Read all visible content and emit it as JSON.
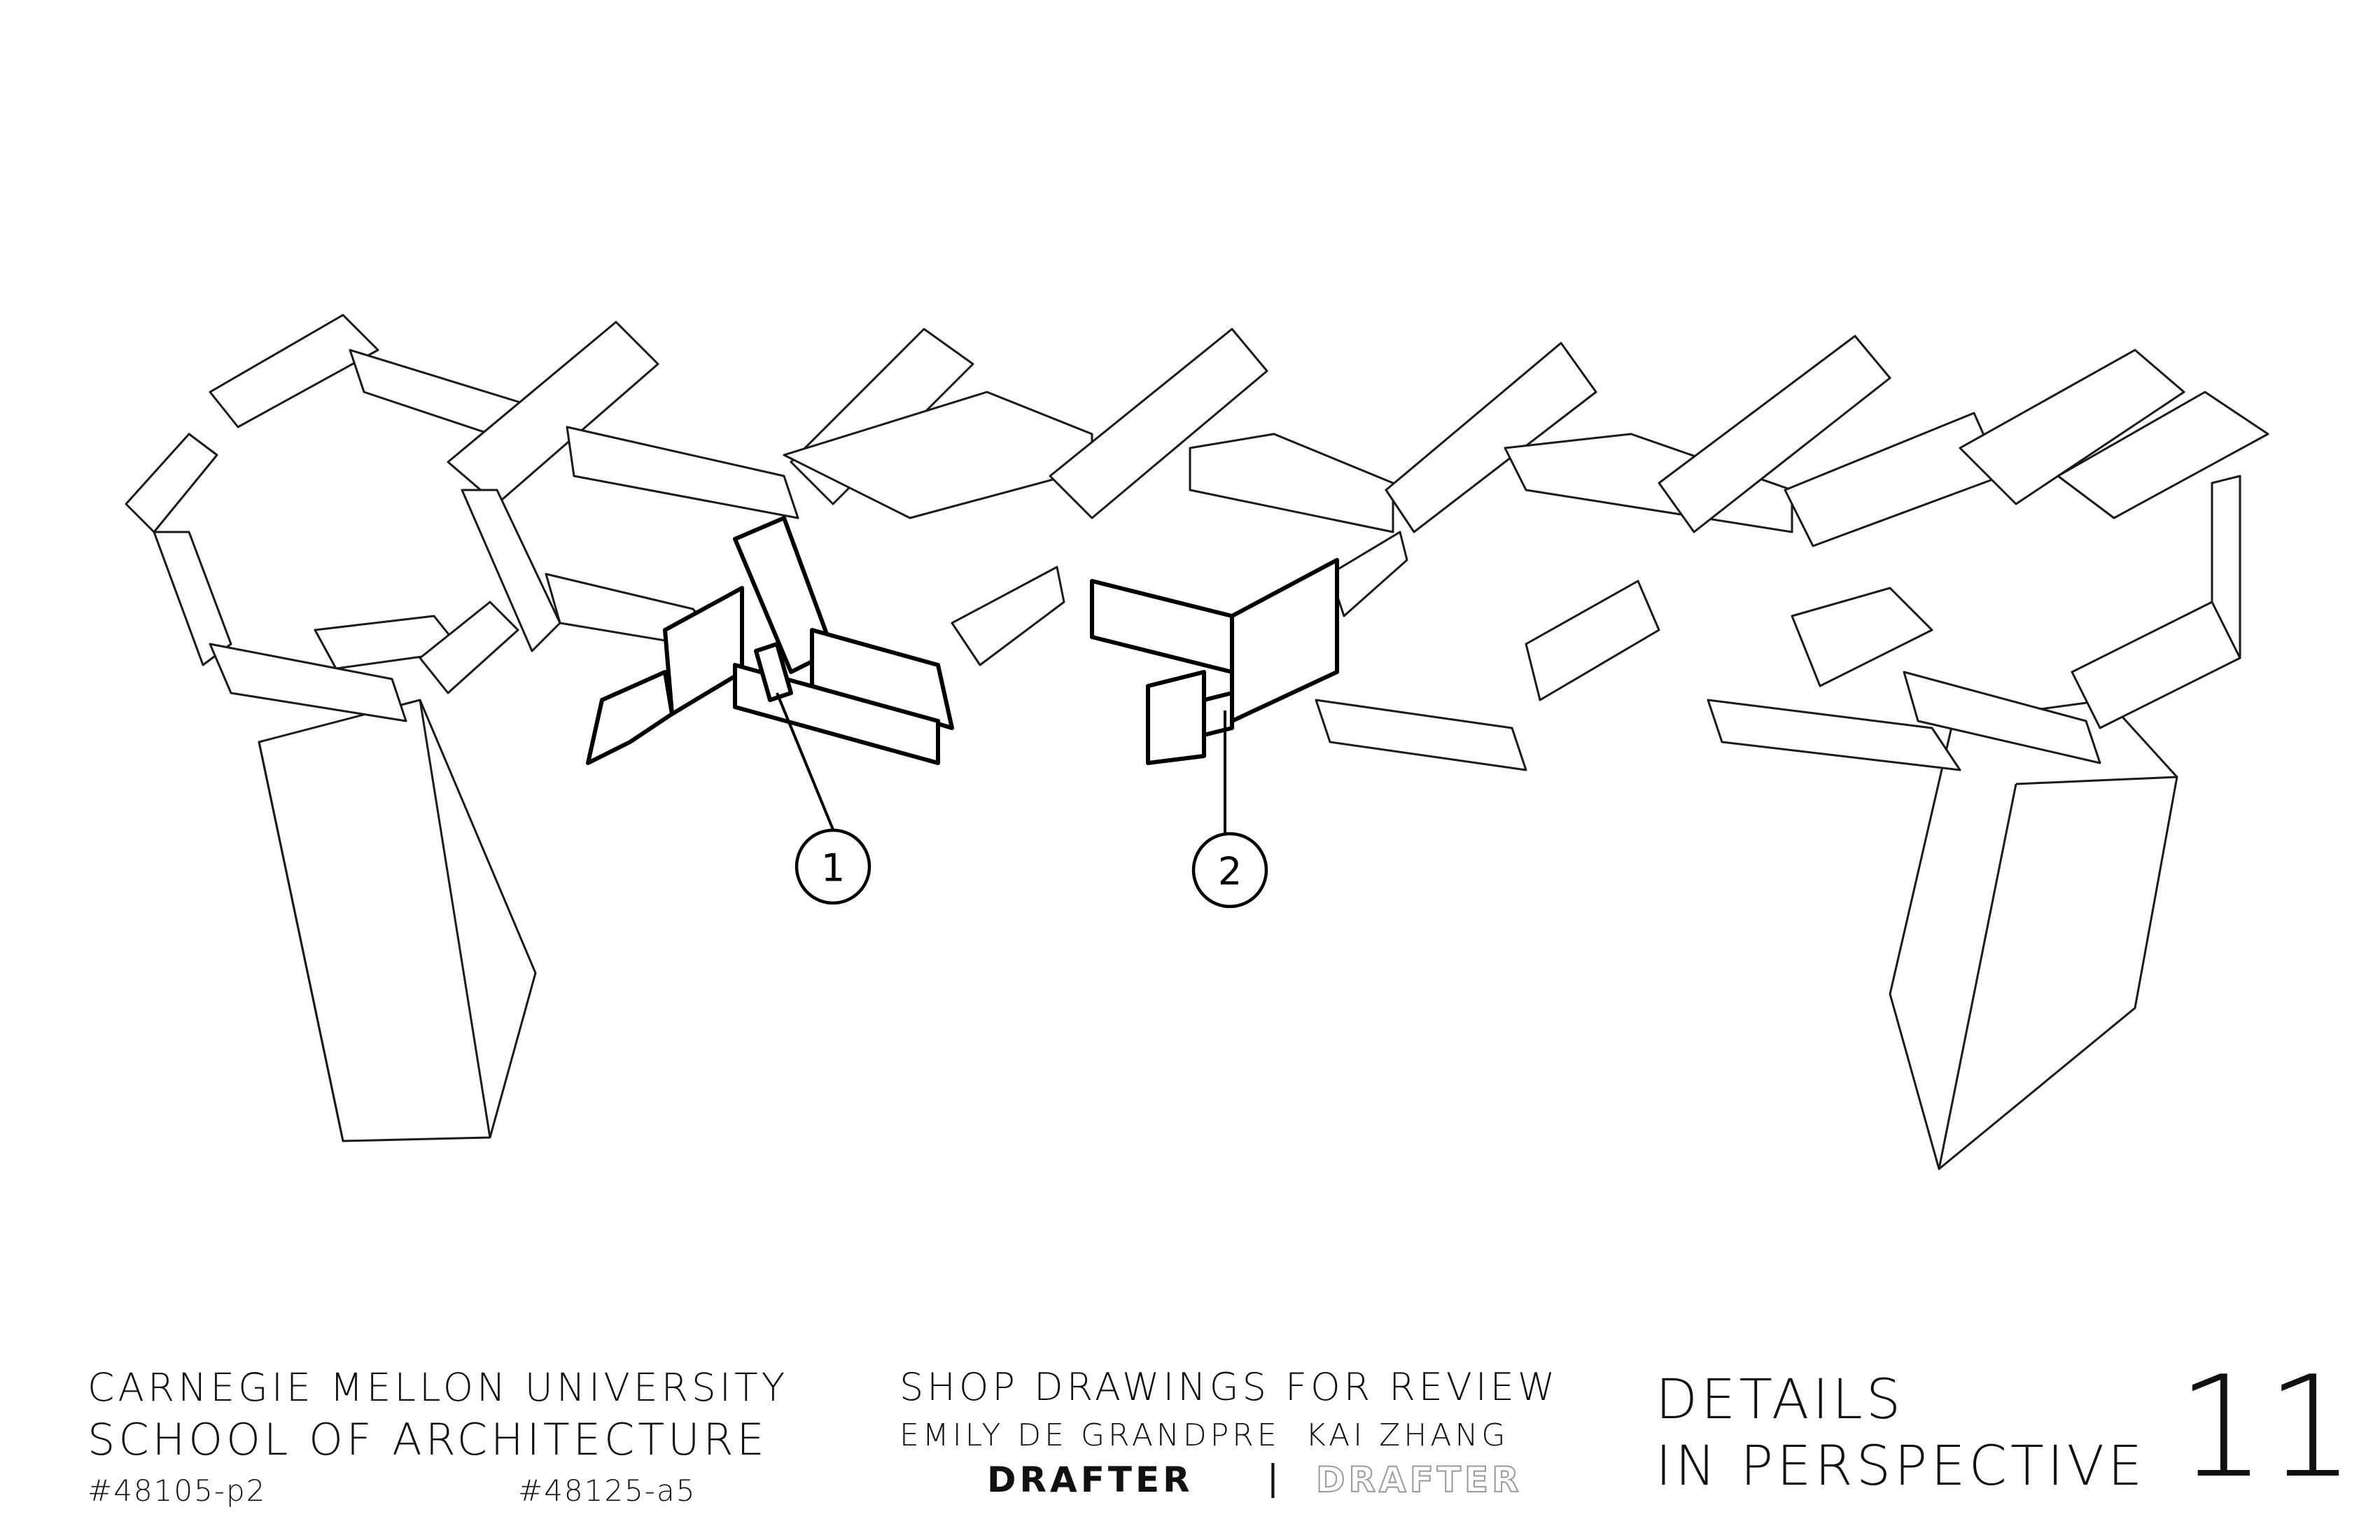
{
  "title_block": {
    "university": "CARNEGIE MELLON UNIVERSITY",
    "school": "SCHOOL OF ARCHITECTURE",
    "course_code_1": "#48105-p2",
    "course_code_2": "#48125-a5",
    "drawing_set": "SHOP DRAWINGS FOR REVIEW",
    "drafter_1_name": "EMILY DE GRANDPRE",
    "drafter_2_name": "KAI ZHANG",
    "drafter_1_role": "DRAFTER",
    "separator": "|",
    "drafter_2_role": "DRAFTER",
    "sheet_title_line1": "DETAILS",
    "sheet_title_line2": "IN PERSPECTIVE",
    "sheet_number": "11"
  },
  "callouts": [
    {
      "label": "1"
    },
    {
      "label": "2"
    }
  ]
}
